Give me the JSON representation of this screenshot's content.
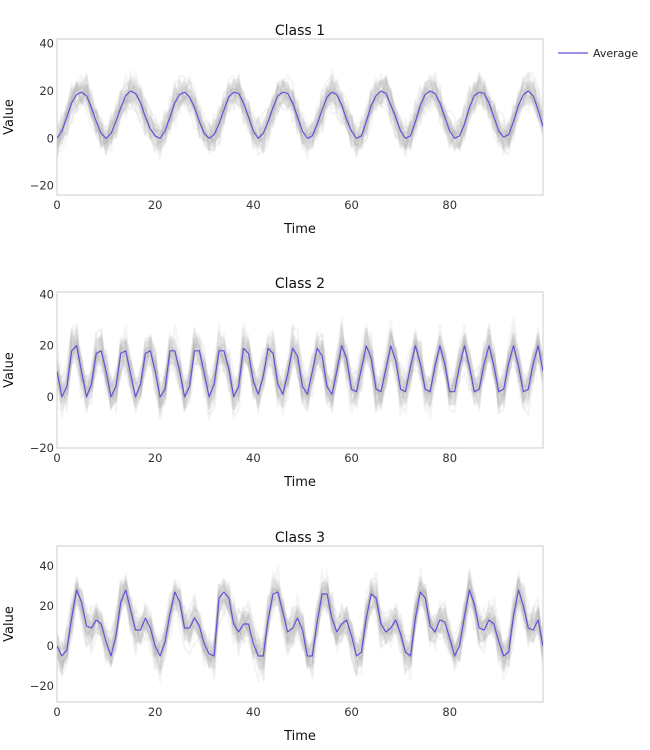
{
  "legend": {
    "label": "Average",
    "color": "#6a4fd8",
    "placement": "top-right"
  },
  "colors": {
    "average_line": "#6a4fd8",
    "sample_band": "#b4b4b4",
    "axis_frame": "#cccccc",
    "tick_text": "#333333"
  },
  "chart_data": [
    {
      "type": "line",
      "title": "Class 1",
      "xlabel": "Time",
      "ylabel": "Value",
      "xlim": [
        0,
        99
      ],
      "ylim": [
        -24,
        42
      ],
      "xticks": [
        0,
        20,
        40,
        60,
        80
      ],
      "yticks": [
        -20,
        0,
        20,
        40
      ],
      "grid": false,
      "spread": 9,
      "series": [
        {
          "name": "Average",
          "values": [
            0,
            3,
            9,
            15,
            18.5,
            19.5,
            18,
            13,
            7,
            2,
            0,
            2,
            7,
            13,
            18,
            20,
            19,
            15,
            9,
            4,
            1,
            0,
            3,
            9,
            15,
            18.5,
            19.5,
            17.5,
            13,
            7,
            2,
            0,
            1.5,
            6,
            12,
            17.5,
            19.5,
            19,
            15,
            9,
            3,
            0,
            2,
            7,
            13,
            18,
            19.5,
            19,
            15,
            9,
            3,
            0,
            1,
            6,
            12,
            17.5,
            19.5,
            18.5,
            14,
            8,
            3,
            0,
            1,
            7,
            14,
            18,
            20,
            19,
            14,
            9,
            3,
            0,
            1,
            7,
            14,
            18.5,
            20,
            19,
            15,
            9,
            3,
            0,
            1,
            6,
            13,
            18,
            19.5,
            19,
            15,
            9,
            3,
            0.5,
            1.5,
            7,
            14,
            18.5,
            20,
            18,
            12,
            5
          ]
        }
      ]
    },
    {
      "type": "line",
      "title": "Class 2",
      "xlabel": "Time",
      "ylabel": "Value",
      "xlim": [
        0,
        99
      ],
      "ylim": [
        -20,
        41
      ],
      "xticks": [
        0,
        20,
        40,
        60,
        80
      ],
      "yticks": [
        -20,
        0,
        20,
        40
      ],
      "grid": false,
      "spread": 10,
      "series": [
        {
          "name": "Average",
          "values": [
            10,
            0,
            4,
            18,
            20,
            10,
            0,
            5,
            17,
            18,
            10,
            0,
            4,
            17,
            18,
            9,
            0,
            5,
            17,
            18,
            10,
            0,
            3,
            18,
            18,
            10,
            0,
            4,
            18,
            18,
            9,
            0,
            5,
            18,
            18,
            11,
            0,
            4,
            19,
            17,
            6,
            1,
            8,
            19,
            17,
            5,
            1,
            9,
            19,
            16,
            4,
            1,
            10,
            19,
            16,
            4,
            1,
            10,
            20,
            15,
            3,
            2,
            11,
            20,
            15,
            3,
            2,
            11,
            20,
            14,
            3,
            2,
            12,
            20,
            13,
            3,
            2,
            12,
            20,
            13,
            2,
            2,
            12,
            20,
            12,
            2,
            3,
            13,
            20,
            12,
            2,
            3,
            13,
            20,
            12,
            2,
            3,
            13,
            20,
            10
          ]
        }
      ]
    },
    {
      "type": "line",
      "title": "Class 3",
      "xlabel": "Time",
      "ylabel": "Value",
      "xlim": [
        0,
        99
      ],
      "ylim": [
        -28,
        50
      ],
      "xticks": [
        0,
        20,
        40,
        60,
        80
      ],
      "yticks": [
        -20,
        0,
        20,
        40
      ],
      "grid": false,
      "spread": 12,
      "series": [
        {
          "name": "Average",
          "values": [
            0,
            -5,
            -2,
            14,
            28,
            22,
            10,
            9,
            13,
            11,
            2,
            -5,
            5,
            22,
            28,
            18,
            8,
            8,
            14,
            9,
            0,
            -5,
            2,
            16,
            27,
            22,
            9,
            9,
            14,
            10,
            1,
            -4,
            -5,
            24,
            27,
            24,
            11,
            7,
            11,
            11,
            1,
            -5,
            -5,
            13,
            26,
            27,
            17,
            7,
            9,
            14,
            8,
            -5,
            -5,
            12,
            26,
            26,
            14,
            7,
            11,
            13,
            5,
            -5,
            -3,
            14,
            26,
            24,
            11,
            7,
            9,
            13,
            6,
            -3,
            -5,
            14,
            27,
            24,
            10,
            7,
            13,
            12,
            4,
            -5,
            0,
            15,
            28,
            21,
            9,
            8,
            13,
            11,
            2,
            -5,
            -3,
            15,
            28,
            20,
            9,
            8,
            13,
            0
          ]
        }
      ]
    }
  ]
}
